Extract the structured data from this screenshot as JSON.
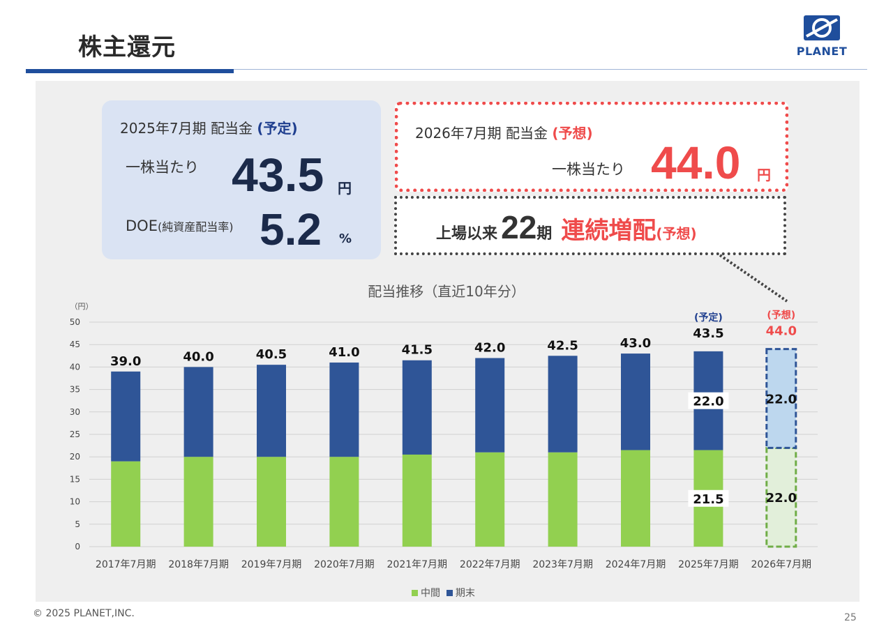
{
  "header": {
    "title": "株主還元",
    "logo_text": "PLANET"
  },
  "box_current": {
    "heading": "2025年7月期 配当金",
    "heading_tag": "(予定)",
    "per_share_label": "一株当たり",
    "per_share_value": "43.5",
    "per_share_unit": "円",
    "doe_label": "DOE",
    "doe_label_sub": "(純資産配当率)",
    "doe_value": "5.2",
    "doe_unit": "%"
  },
  "box_forecast": {
    "heading": "2026年7月期 配当金",
    "heading_tag": "(予想)",
    "per_share_label": "一株当たり",
    "per_share_value": "44.0",
    "per_share_unit": "円"
  },
  "streak": {
    "prefix": "上場以来",
    "count": "22",
    "count_suffix": "期",
    "highlight": "連続増配",
    "tag": "(予想)"
  },
  "chart_data": {
    "type": "bar",
    "stacked": true,
    "title": "配当推移（直近10年分）",
    "ylabel": "（円）",
    "ylim": [
      0,
      50
    ],
    "yticks": [
      0,
      5,
      10,
      15,
      20,
      25,
      30,
      35,
      40,
      45,
      50
    ],
    "categories": [
      "2017年7月期",
      "2018年7月期",
      "2019年7月期",
      "2020年7月期",
      "2021年7月期",
      "2022年7月期",
      "2023年7月期",
      "2024年7月期",
      "2025年7月期",
      "2026年7月期"
    ],
    "series": [
      {
        "name": "中間",
        "color": "#92d050",
        "values": [
          19.0,
          20.0,
          20.0,
          20.0,
          20.5,
          21.0,
          21.0,
          21.5,
          21.5,
          22.0
        ]
      },
      {
        "name": "期末",
        "color": "#2f5597",
        "values": [
          20.0,
          20.0,
          20.5,
          21.0,
          21.0,
          21.0,
          21.5,
          21.5,
          22.0,
          22.0
        ]
      }
    ],
    "totals": [
      "39.0",
      "40.0",
      "40.5",
      "41.0",
      "41.5",
      "42.0",
      "42.5",
      "43.0",
      "43.5",
      "44.0"
    ],
    "segment_labels": {
      "2025年7月期": {
        "interim": "21.5",
        "final": "22.0"
      },
      "2026年7月期": {
        "interim": "22.0",
        "final": "22.0"
      }
    },
    "annotations": {
      "2025年7月期": "(予定)",
      "2026年7月期": "(予想)"
    },
    "forecast_category": "2026年7月期",
    "forecast_style": {
      "interim_fill": "#e2efda",
      "interim_border": "#70ad47",
      "final_fill": "#bdd7ee",
      "final_border": "#2f5597"
    },
    "grid": true,
    "legend_position": "bottom"
  },
  "colors": {
    "accent_blue": "#1f4e9c",
    "accent_red": "#ef4b4b",
    "interim": "#92d050",
    "final": "#2f5597"
  },
  "footer": {
    "copyright": "© 2025 PLANET,INC.",
    "page_number": "25"
  }
}
